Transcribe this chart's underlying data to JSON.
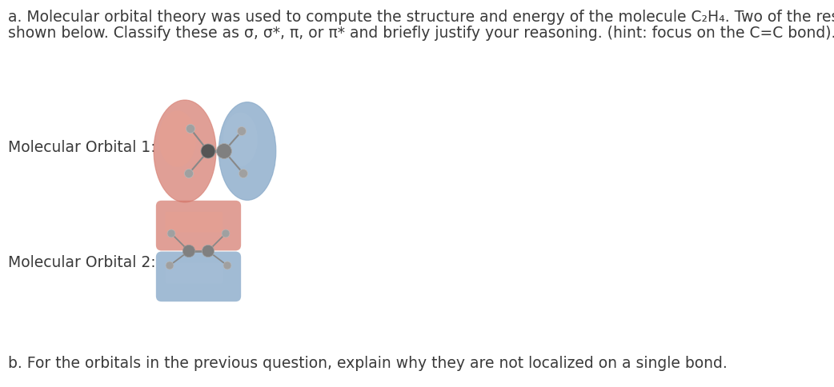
{
  "background_color": "#ffffff",
  "text_color": "#3a3a3a",
  "title_line1": "a. Molecular orbital theory was used to compute the structure and energy of the molecule C₂H₄. Two of the resulting orbitals are",
  "title_line2": "shown below. Classify these as σ, σ*, π, or π* and briefly justify your reasoning. (hint: focus on the C=C bond).",
  "label1": "Molecular Orbital 1:",
  "label2": "Molecular Orbital 2:",
  "bottom_text": "b. For the orbitals in the previous question, explain why they are not localized on a single bond.",
  "red_color": "#D4776A",
  "red_light": "#E8A090",
  "blue_color": "#7A9FC2",
  "blue_light": "#A8C0D8",
  "atom_dark": "#555555",
  "atom_med": "#808080",
  "atom_light": "#A0A0A0",
  "bond_color": "#888888"
}
